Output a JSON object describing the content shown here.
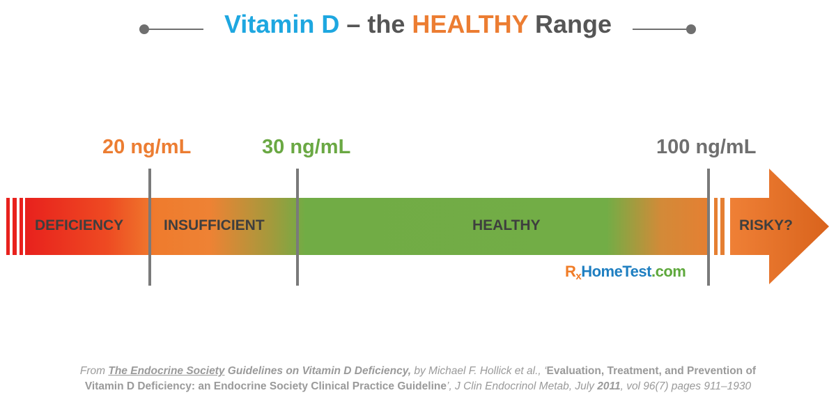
{
  "title": {
    "part1": "Vitamin D",
    "part2": " – the ",
    "part3": "HEALTHY",
    "part4": " Range"
  },
  "markers": [
    {
      "label": "20 ng/mL",
      "color": "#ec7d32"
    },
    {
      "label": "30 ng/mL",
      "color": "#6aa843"
    },
    {
      "label": "100 ng/mL",
      "color": "#6f6f6f"
    }
  ],
  "ranges": [
    {
      "label": "DEFICIENCY"
    },
    {
      "label": "INSUFFICIENT"
    },
    {
      "label": "HEALTHY"
    },
    {
      "label": "RISKY?"
    }
  ],
  "brand": {
    "rx_r": "R",
    "rx_x": "x",
    "home": "Home",
    "test": "Test",
    "dotcom": ".com"
  },
  "citation": {
    "from": "From ",
    "society": "The Endocrine Society",
    "guidelines": " Guidelines on Vitamin D Deficiency,",
    "authors": " by Michael F. Hollick et al., ‘",
    "article1": "Evaluation, Treatment, and Prevention of",
    "article2": "Vitamin D Deficiency: an Endocrine Society Clinical Practice Guideline",
    "quote_close": "’",
    "journal": ", J Clin Endocrinol Metab, July ",
    "year": "2011",
    "volume": ", vol 96(7) pages 911–1930"
  },
  "colors": {
    "title_blue": "#1ea7e0",
    "title_orange": "#ec7d32",
    "title_gray": "#555555",
    "deficiency_red": "#e8211d",
    "insufficient_orange": "#ee8234",
    "healthy_green": "#72ad46",
    "risky_orange": "#e57f32"
  }
}
